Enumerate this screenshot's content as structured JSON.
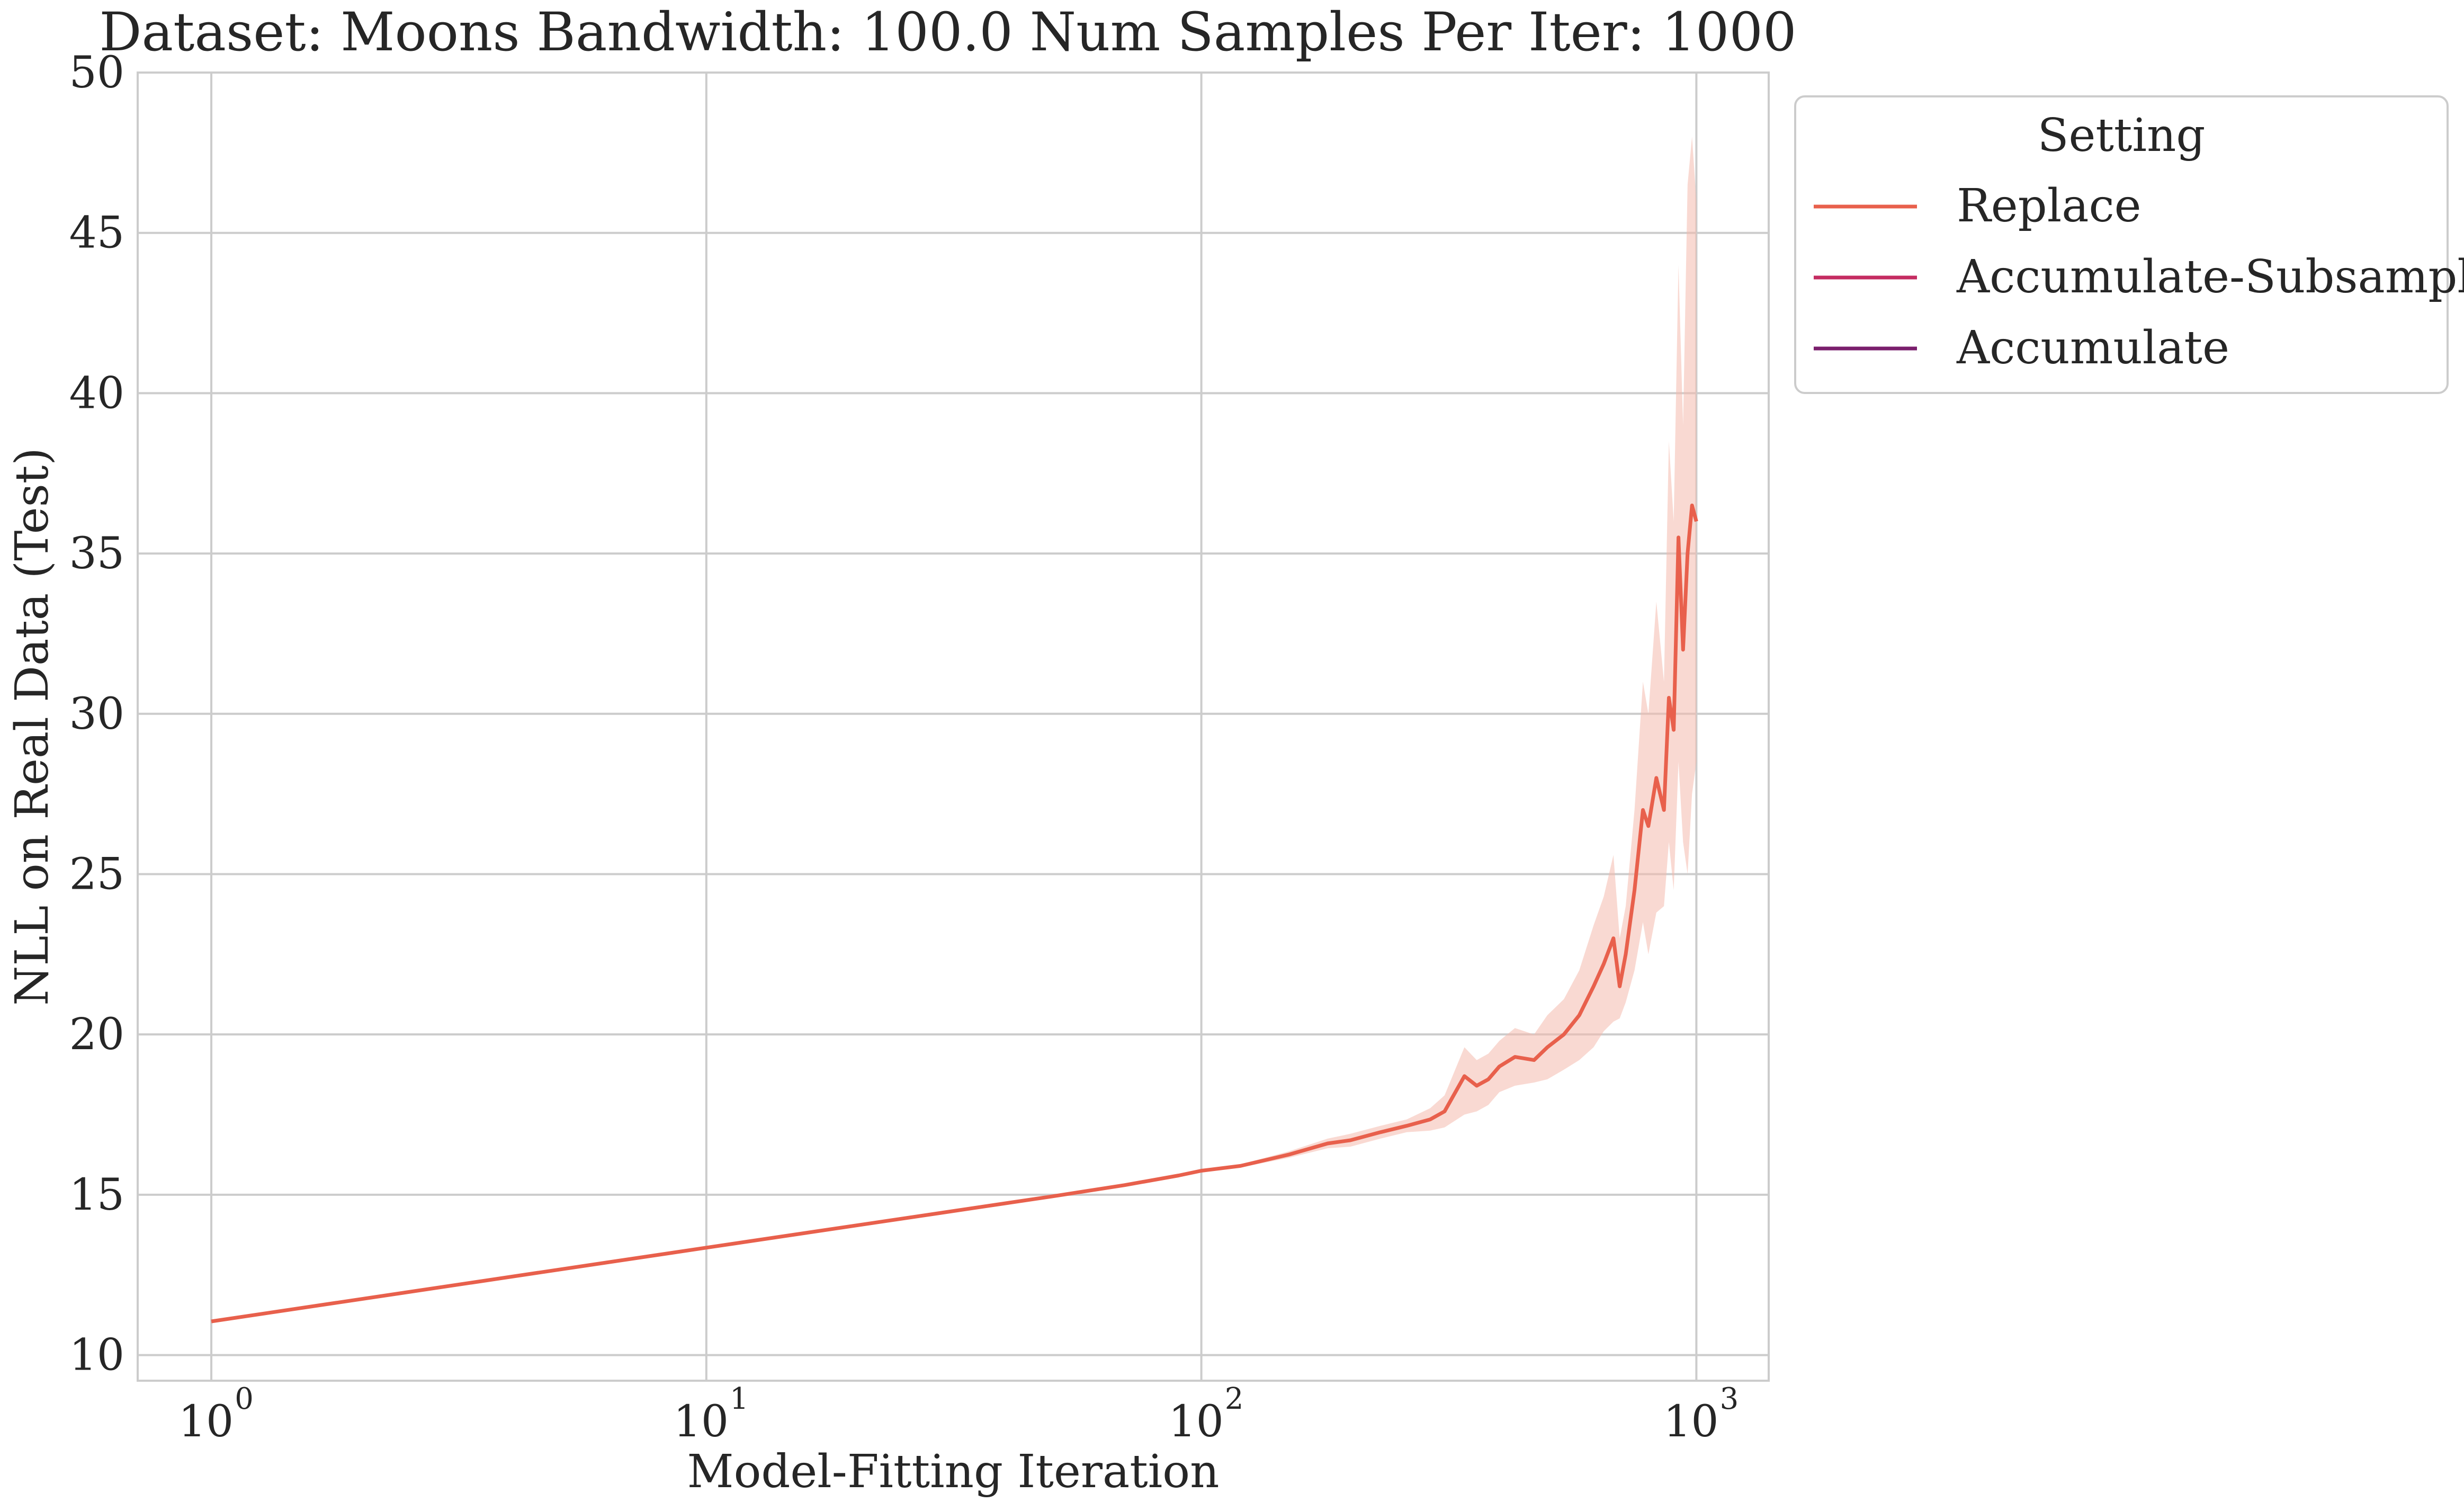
{
  "chart_data": {
    "type": "line",
    "title": "Dataset: Moons Bandwidth: 100.0 Num Samples Per Iter: 1000",
    "xlabel": "Model-Fitting Iteration",
    "ylabel": "NLL on Real Data (Test)",
    "xscale": "log",
    "xlim": [
      0.71,
      1400
    ],
    "ylim": [
      9.2,
      50
    ],
    "xticks": [
      {
        "value": 1,
        "label": "10",
        "exp": "0"
      },
      {
        "value": 10,
        "label": "10",
        "exp": "1"
      },
      {
        "value": 100,
        "label": "10",
        "exp": "2"
      },
      {
        "value": 1000,
        "label": "10",
        "exp": "3"
      }
    ],
    "yticks": [
      10,
      15,
      20,
      25,
      30,
      35,
      40,
      45,
      50
    ],
    "grid": true,
    "legend": {
      "title": "Setting",
      "placement": "outside-top-right",
      "entries": [
        {
          "label": "Replace",
          "color": "#e8604c"
        },
        {
          "label": "Accumulate-Subsample",
          "color": "#c42c61"
        },
        {
          "label": "Accumulate",
          "color": "#7a1e6c"
        }
      ]
    },
    "series": [
      {
        "name": "Replace",
        "color": "#e8604c",
        "band_color": "#f4b9ad",
        "x": [
          1,
          10,
          50,
          70,
          90,
          100,
          120,
          150,
          180,
          200,
          230,
          260,
          290,
          310,
          340,
          360,
          380,
          400,
          430,
          470,
          500,
          540,
          580,
          620,
          650,
          680,
          700,
          720,
          750,
          780,
          800,
          830,
          860,
          880,
          900,
          920,
          940,
          960,
          980,
          1000
        ],
        "values": [
          11.05,
          13.35,
          14.95,
          15.3,
          15.6,
          15.75,
          15.9,
          16.25,
          16.6,
          16.7,
          16.95,
          17.15,
          17.35,
          17.6,
          18.7,
          18.4,
          18.6,
          19.0,
          19.3,
          19.2,
          19.6,
          20.0,
          20.6,
          21.5,
          22.2,
          23.0,
          21.5,
          22.5,
          24.5,
          27.0,
          26.5,
          28.0,
          27.0,
          30.5,
          29.5,
          35.5,
          32.0,
          35.0,
          36.5,
          36.0
        ],
        "lower": [
          11.05,
          13.35,
          14.9,
          15.25,
          15.55,
          15.7,
          15.85,
          16.15,
          16.45,
          16.5,
          16.75,
          16.95,
          17.0,
          17.1,
          17.5,
          17.6,
          17.8,
          18.2,
          18.4,
          18.5,
          18.6,
          18.9,
          19.2,
          19.6,
          20.1,
          20.4,
          20.5,
          21.0,
          22.0,
          23.5,
          22.5,
          23.8,
          24.0,
          26.0,
          24.5,
          28.5,
          26.0,
          25.0,
          27.5,
          28.5
        ],
        "upper": [
          11.05,
          13.35,
          15.0,
          15.35,
          15.65,
          15.8,
          15.95,
          16.35,
          16.75,
          16.9,
          17.15,
          17.35,
          17.7,
          18.1,
          19.6,
          19.2,
          19.4,
          19.8,
          20.2,
          20.0,
          20.6,
          21.1,
          22.0,
          23.4,
          24.3,
          25.6,
          23.0,
          24.0,
          27.0,
          31.0,
          30.0,
          33.5,
          31.0,
          38.5,
          36.0,
          44.0,
          39.0,
          46.5,
          48.0,
          46.0
        ]
      },
      {
        "name": "Accumulate-Subsample",
        "color": "#c42c61",
        "x": [],
        "values": []
      },
      {
        "name": "Accumulate",
        "color": "#7a1e6c",
        "x": [],
        "values": []
      }
    ]
  }
}
